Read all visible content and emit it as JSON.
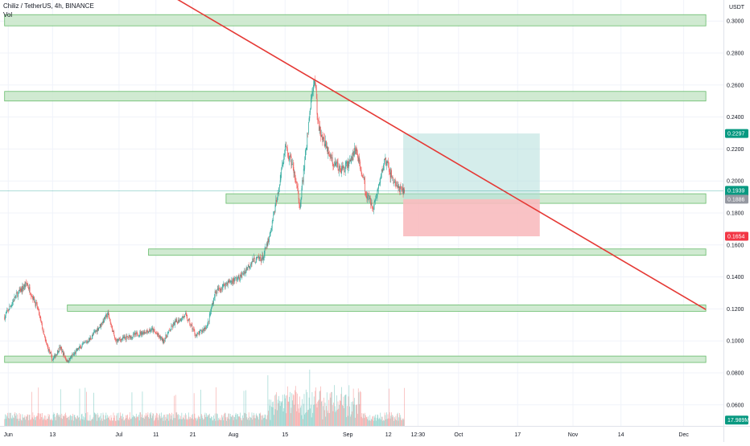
{
  "header": {
    "symbol_line": "Chiliz / TetherUS, 4h, BINANCE",
    "volume_label": "Vol"
  },
  "chart_data": {
    "type": "candlestick",
    "symbol": "Chiliz / TetherUS",
    "timeframe": "4h",
    "exchange": "BINANCE",
    "y_unit": "USDT",
    "ylim": [
      0.0485,
      0.307
    ],
    "y_ticks": [
      "0.0600",
      "0.0800",
      "0.1000",
      "0.1200",
      "0.1400",
      "0.1600",
      "0.1800",
      "0.2000",
      "0.2200",
      "0.2400",
      "0.2600",
      "0.2800",
      "0.3000"
    ],
    "x_ticks": [
      {
        "label": "Jun",
        "date": "2022-06-01"
      },
      {
        "label": "13",
        "date": "2022-06-13"
      },
      {
        "label": "Jul",
        "date": "2022-07-01"
      },
      {
        "label": "11",
        "date": "2022-07-11"
      },
      {
        "label": "21",
        "date": "2022-07-21"
      },
      {
        "label": "Aug",
        "date": "2022-08-01"
      },
      {
        "label": "15",
        "date": "2022-08-15"
      },
      {
        "label": "Sep",
        "date": "2022-09-01"
      },
      {
        "label": "12",
        "date": "2022-09-12"
      },
      {
        "label": "12:30",
        "date": "2022-09-20"
      },
      {
        "label": "Oct",
        "date": "2022-10-01"
      },
      {
        "label": "17",
        "date": "2022-10-17"
      },
      {
        "label": "Nov",
        "date": "2022-11-01"
      },
      {
        "label": "14",
        "date": "2022-11-14"
      },
      {
        "label": "Dec",
        "date": "2022-12-01"
      }
    ],
    "price_path": [
      [
        "2022-05-31",
        0.115
      ],
      [
        "2022-06-03",
        0.128
      ],
      [
        "2022-06-06",
        0.136
      ],
      [
        "2022-06-09",
        0.12
      ],
      [
        "2022-06-11",
        0.1
      ],
      [
        "2022-06-13",
        0.088
      ],
      [
        "2022-06-15",
        0.096
      ],
      [
        "2022-06-17",
        0.087
      ],
      [
        "2022-06-20",
        0.095
      ],
      [
        "2022-06-23",
        0.101
      ],
      [
        "2022-06-26",
        0.11
      ],
      [
        "2022-06-28",
        0.117
      ],
      [
        "2022-06-30",
        0.1
      ],
      [
        "2022-07-03",
        0.102
      ],
      [
        "2022-07-07",
        0.105
      ],
      [
        "2022-07-10",
        0.107
      ],
      [
        "2022-07-13",
        0.1
      ],
      [
        "2022-07-16",
        0.111
      ],
      [
        "2022-07-19",
        0.116
      ],
      [
        "2022-07-22",
        0.103
      ],
      [
        "2022-07-25",
        0.11
      ],
      [
        "2022-07-27",
        0.13
      ],
      [
        "2022-07-30",
        0.136
      ],
      [
        "2022-08-03",
        0.14
      ],
      [
        "2022-08-06",
        0.15
      ],
      [
        "2022-08-09",
        0.152
      ],
      [
        "2022-08-11",
        0.167
      ],
      [
        "2022-08-13",
        0.192
      ],
      [
        "2022-08-15",
        0.22
      ],
      [
        "2022-08-17",
        0.21
      ],
      [
        "2022-08-19",
        0.185
      ],
      [
        "2022-08-20",
        0.205
      ],
      [
        "2022-08-22",
        0.25
      ],
      [
        "2022-08-23",
        0.265
      ],
      [
        "2022-08-24",
        0.235
      ],
      [
        "2022-08-26",
        0.222
      ],
      [
        "2022-08-28",
        0.212
      ],
      [
        "2022-08-30",
        0.207
      ],
      [
        "2022-09-01",
        0.21
      ],
      [
        "2022-09-03",
        0.219
      ],
      [
        "2022-09-05",
        0.205
      ],
      [
        "2022-09-06",
        0.191
      ],
      [
        "2022-09-08",
        0.184
      ],
      [
        "2022-09-10",
        0.203
      ],
      [
        "2022-09-11",
        0.214
      ],
      [
        "2022-09-13",
        0.202
      ],
      [
        "2022-09-15",
        0.194
      ],
      [
        "2022-09-16",
        0.1939
      ]
    ],
    "last_candle_date": "2022-09-16",
    "volume_ylim": [
      0,
      90
    ],
    "annotations": {
      "support_zones": [
        {
          "from": "2022-05-31",
          "to": "2022-12-07",
          "low": 0.297,
          "high": 0.304
        },
        {
          "from": "2022-05-31",
          "to": "2022-12-07",
          "low": 0.25,
          "high": 0.256
        },
        {
          "from": "2022-07-30",
          "to": "2022-12-07",
          "low": 0.186,
          "high": 0.192
        },
        {
          "from": "2022-07-09",
          "to": "2022-12-07",
          "low": 0.1535,
          "high": 0.1575
        },
        {
          "from": "2022-06-17",
          "to": "2022-12-07",
          "low": 0.1185,
          "high": 0.1225
        },
        {
          "from": "2022-05-31",
          "to": "2022-12-07",
          "low": 0.0865,
          "high": 0.0905
        }
      ],
      "trendline": {
        "from": [
          "2022-07-01",
          0.335
        ],
        "to": [
          "2022-12-07",
          0.1196
        ],
        "color": "#e53935"
      },
      "position": {
        "from": "2022-09-16",
        "to": "2022-10-23",
        "entry": 0.1886,
        "target": 0.2297,
        "stop": 0.1654,
        "profit_color": "#b2dfdb",
        "loss_color": "#f8bbbf"
      },
      "current_price_line": 0.1939
    },
    "price_tags": [
      {
        "value": "0.2297",
        "sub": "",
        "price": 0.2297,
        "color": "#089981"
      },
      {
        "value": "0.1939",
        "sub": "02:18:20",
        "price": 0.1939,
        "color": "#089981"
      },
      {
        "value": "0.1886",
        "sub": "",
        "price": 0.1886,
        "color": "#9598a1"
      },
      {
        "value": "0.1654",
        "sub": "",
        "price": 0.1654,
        "color": "#f23645"
      },
      {
        "value": "17.989M",
        "sub": "",
        "price": 0.0505,
        "color": "#089981"
      }
    ],
    "colors": {
      "up": "#26a69a",
      "down": "#ef5350",
      "zone_fill": "#c8e6c9",
      "zone_stroke": "#66bb6a",
      "grid": "#f0f3fa"
    }
  }
}
